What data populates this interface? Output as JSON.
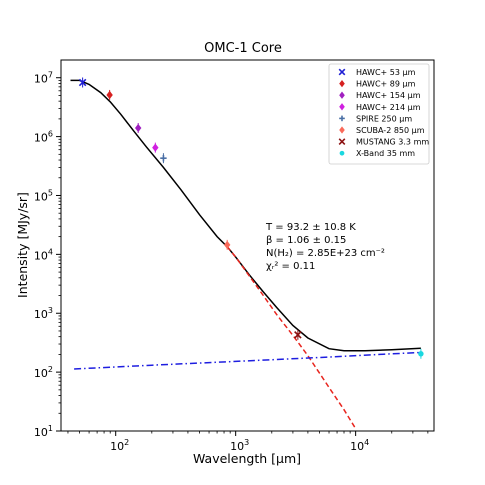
{
  "chart_data": {
    "type": "scatter",
    "title": "OMC-1 Core",
    "xlabel": "Wavelength [μm]",
    "ylabel": "Intensity [MJy/sr]",
    "xscale": "log",
    "yscale": "log",
    "xlim": [
      35,
      45000
    ],
    "ylim": [
      10,
      20000000
    ],
    "xtick_labels": [
      {
        "value": 100,
        "label": "10",
        "exp": "2"
      },
      {
        "value": 1000,
        "label": "10",
        "exp": "3"
      },
      {
        "value": 10000,
        "label": "10",
        "exp": "4"
      }
    ],
    "ytick_labels": [
      {
        "value": 10,
        "label": "10",
        "exp": "1"
      },
      {
        "value": 100,
        "label": "10",
        "exp": "2"
      },
      {
        "value": 1000,
        "label": "10",
        "exp": "3"
      },
      {
        "value": 10000,
        "label": "10",
        "exp": "4"
      },
      {
        "value": 100000,
        "label": "10",
        "exp": "5"
      },
      {
        "value": 1000000,
        "label": "10",
        "exp": "6"
      },
      {
        "value": 10000000,
        "label": "10",
        "exp": "7"
      }
    ],
    "legend_position": "top-right",
    "series": [
      {
        "name": "HAWC+ 53 μm",
        "marker": "x",
        "color": "#1f1fd4",
        "x": [
          53
        ],
        "y": [
          8300000
        ]
      },
      {
        "name": "HAWC+ 89 μm",
        "marker": "diamond",
        "color": "#d62020",
        "x": [
          89
        ],
        "y": [
          5100000
        ]
      },
      {
        "name": "HAWC+ 154 μm",
        "marker": "diamond",
        "color": "#a020c0",
        "x": [
          154
        ],
        "y": [
          1400000
        ]
      },
      {
        "name": "HAWC+ 214 μm",
        "marker": "diamond",
        "color": "#d020e0",
        "x": [
          214
        ],
        "y": [
          650000
        ]
      },
      {
        "name": "SPIRE 250 μm",
        "marker": "plus",
        "color": "#4a6fa5",
        "x": [
          250
        ],
        "y": [
          430000
        ]
      },
      {
        "name": "SCUBA-2 850 μm",
        "marker": "diamond",
        "color": "#fa6a5a",
        "x": [
          850
        ],
        "y": [
          14500
        ]
      },
      {
        "name": "MUSTANG 3.3 mm",
        "marker": "x",
        "color": "#8b1010",
        "x": [
          3300
        ],
        "y": [
          430
        ]
      },
      {
        "name": "X-Band 35 mm",
        "marker": "circle",
        "color": "#1ad8e0",
        "x": [
          35000
        ],
        "y": [
          205
        ]
      }
    ],
    "model_curves": [
      {
        "style": "solid",
        "color": "#000000",
        "x": [
          42,
          50,
          60,
          75,
          90,
          110,
          140,
          180,
          250,
          350,
          500,
          700,
          850,
          1000,
          1300,
          1700,
          2200,
          3000,
          4000,
          6000,
          8000,
          12000,
          20000,
          35000
        ],
        "y": [
          9000000,
          9000000,
          7700000,
          5600000,
          3900000,
          2400000,
          1280000,
          670000,
          300000,
          125000,
          47000,
          20000,
          13500,
          9000,
          4500,
          2300,
          1250,
          620,
          380,
          250,
          230,
          230,
          240,
          255
        ]
      },
      {
        "style": "dashed",
        "color": "#e8251e",
        "x": [
          850,
          1000,
          1300,
          1700,
          2200,
          3000,
          4000,
          6000,
          8000,
          10000
        ],
        "y": [
          13500,
          9000,
          4300,
          2000,
          950,
          420,
          190,
          55,
          23,
          11
        ]
      },
      {
        "style": "dashdot",
        "color": "#1e1ee0",
        "x": [
          45,
          200,
          1000,
          5000,
          20000,
          35000
        ],
        "y": [
          113,
          131,
          152,
          177,
          205,
          215
        ]
      }
    ],
    "annotations": {
      "temperature": "T = 93.2 ± 10.8 K",
      "beta": "β = 1.06 ± 0.15",
      "column_density": "N(H₂) = 2.85E+23 cm⁻²",
      "chi2": "χᵣ² = 0.11"
    }
  }
}
